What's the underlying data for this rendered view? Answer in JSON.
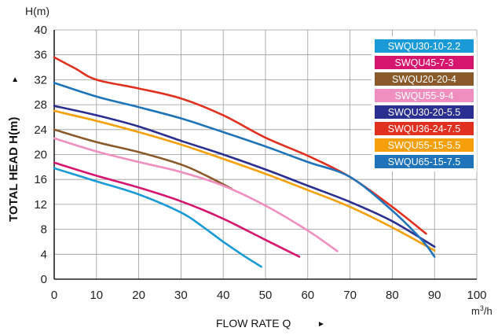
{
  "chart_data": {
    "type": "line",
    "title": "",
    "xlabel": "FLOW RATE Q",
    "xlabel_arrow": "►",
    "x_unit": "m³/h",
    "ylabel": "TOTAL HEAD H(m)",
    "ylabel_arrow": "►",
    "y_unit": "H(m)",
    "xlim": [
      0,
      100
    ],
    "ylim": [
      0,
      40
    ],
    "x_ticks": [
      "0",
      "10",
      "20",
      "30",
      "40",
      "50",
      "60",
      "70",
      "80",
      "90",
      "100"
    ],
    "y_ticks": [
      "0",
      "4",
      "8",
      "12",
      "16",
      "20",
      "24",
      "28",
      "32",
      "36",
      "40"
    ],
    "grid": true,
    "legend_position": "top-right",
    "series": [
      {
        "name": "SWQU30-10-2.2",
        "color": "#1a9ad6",
        "x": [
          0,
          10,
          20,
          30,
          35,
          40,
          45,
          49
        ],
        "y": [
          17.8,
          15.7,
          13.6,
          10.7,
          8.5,
          6.0,
          3.7,
          2.0
        ]
      },
      {
        "name": "SWQU45-7-3",
        "color": "#d6166e",
        "x": [
          0,
          10,
          20,
          30,
          40,
          50,
          58
        ],
        "y": [
          18.7,
          16.6,
          14.7,
          12.5,
          9.7,
          6.3,
          3.6
        ]
      },
      {
        "name": "SWQU20-20-4",
        "color": "#8b5a2b",
        "x": [
          0,
          10,
          20,
          30,
          36,
          42
        ],
        "y": [
          24.0,
          22.0,
          20.4,
          18.4,
          16.6,
          14.5
        ]
      },
      {
        "name": "SWQU55-9-4",
        "color": "#ef8fbf",
        "x": [
          0,
          10,
          20,
          30,
          40,
          50,
          60,
          67
        ],
        "y": [
          22.6,
          20.5,
          18.8,
          17.2,
          15.0,
          11.8,
          7.8,
          4.5
        ]
      },
      {
        "name": "SWQU30-20-5.5",
        "color": "#2b2f8f",
        "x": [
          0,
          10,
          20,
          30,
          40,
          50,
          60,
          70,
          80,
          90
        ],
        "y": [
          27.8,
          26.3,
          24.5,
          22.2,
          20.0,
          17.6,
          15.0,
          12.4,
          9.3,
          5.2
        ]
      },
      {
        "name": "SWQU36-24-7.5",
        "color": "#e03020",
        "x": [
          0,
          5,
          10,
          20,
          30,
          40,
          50,
          60,
          70,
          80,
          88
        ],
        "y": [
          35.6,
          33.8,
          32.0,
          30.6,
          29.0,
          26.3,
          22.7,
          19.8,
          16.4,
          11.6,
          7.3
        ]
      },
      {
        "name": "SWQU55-15-5.5",
        "color": "#f5a00a",
        "x": [
          0,
          10,
          20,
          30,
          40,
          50,
          60,
          70,
          80,
          90
        ],
        "y": [
          27.0,
          25.4,
          23.6,
          21.6,
          19.3,
          16.9,
          14.3,
          11.6,
          8.3,
          4.6
        ]
      },
      {
        "name": "SWQU65-15-7.5",
        "color": "#1f74b9",
        "x": [
          0,
          10,
          20,
          30,
          40,
          50,
          60,
          70,
          80,
          87,
          90
        ],
        "y": [
          31.5,
          29.3,
          27.6,
          25.8,
          23.6,
          21.3,
          18.8,
          16.4,
          11.0,
          6.3,
          3.6
        ]
      }
    ]
  }
}
